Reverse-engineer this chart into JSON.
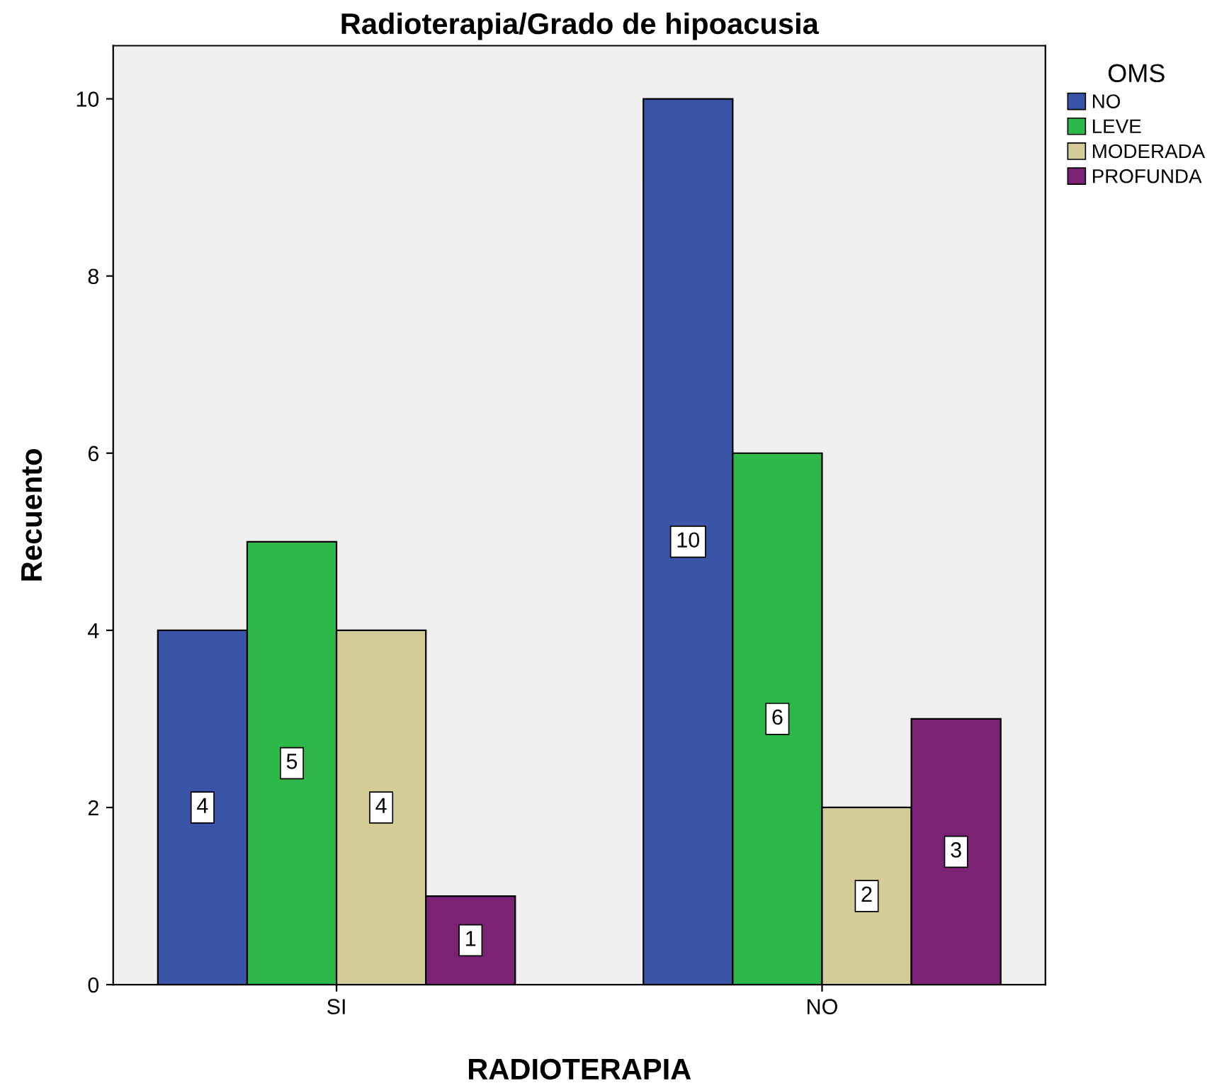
{
  "chart_data": {
    "type": "bar",
    "title": "Radioterapia/Grado de hipoacusia",
    "xlabel": "RADIOTERAPIA",
    "ylabel": "Recuento",
    "legend_title": "OMS",
    "categories": [
      "SI",
      "NO"
    ],
    "series": [
      {
        "name": "NO",
        "color": "#3a55a8",
        "values": [
          4,
          10
        ]
      },
      {
        "name": "LEVE",
        "color": "#2db84a",
        "values": [
          5,
          6
        ]
      },
      {
        "name": "MODERADA",
        "color": "#d4cc96",
        "values": [
          4,
          2
        ]
      },
      {
        "name": "PROFUNDA",
        "color": "#7b2274",
        "values": [
          1,
          3
        ]
      }
    ],
    "ylim": [
      0,
      10.6
    ],
    "yticks": [
      0,
      2,
      4,
      6,
      8,
      10
    ],
    "grid": false,
    "legend": "top right",
    "data_labels": true
  }
}
